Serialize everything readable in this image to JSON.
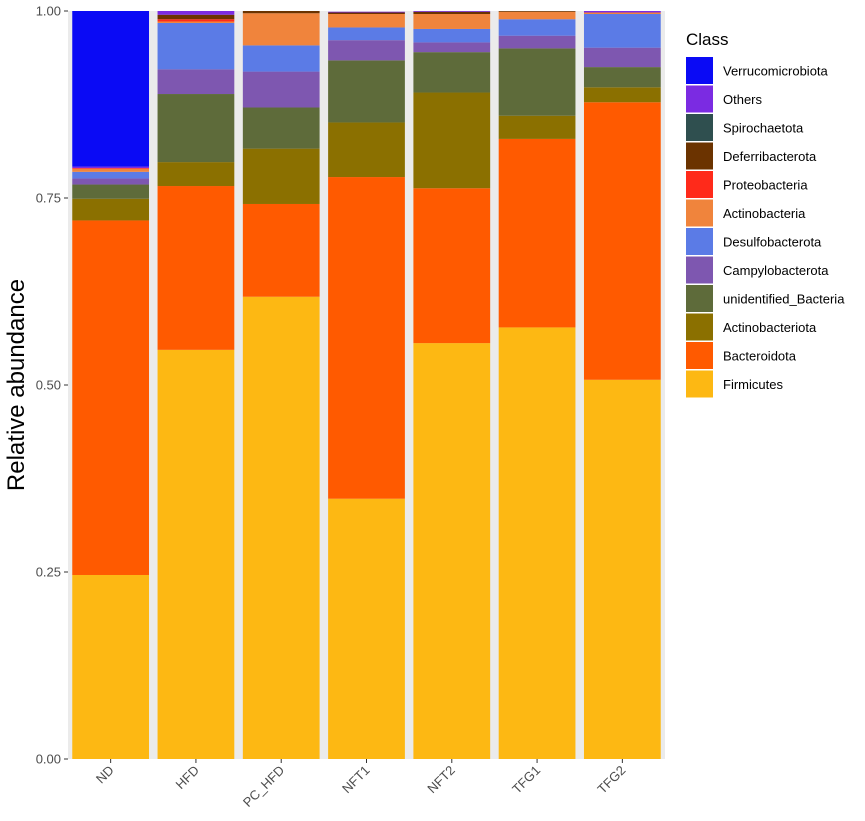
{
  "chart_data": {
    "type": "bar",
    "stacked": true,
    "title": "",
    "xlabel": "",
    "ylabel": "Relative abundance",
    "ylim": [
      0,
      1
    ],
    "y_ticks": [
      "0.00",
      "0.25",
      "0.50",
      "0.75",
      "1.00"
    ],
    "y_tick_values": [
      0,
      0.25,
      0.5,
      0.75,
      1.0
    ],
    "categories": [
      "ND",
      "HFD",
      "PC_HFD",
      "NFT1",
      "NFT2",
      "TFG1",
      "TFG2"
    ],
    "legend_title": "Class",
    "legend_position": "right",
    "panel_background": "#ebebeb",
    "series": [
      {
        "name": "Firmicutes",
        "color": "#FDB813",
        "values": [
          0.246,
          0.547,
          0.618,
          0.348,
          0.556,
          0.577,
          0.507
        ]
      },
      {
        "name": "Bacteroidota",
        "color": "#FF5A00",
        "values": [
          0.474,
          0.219,
          0.124,
          0.43,
          0.207,
          0.252,
          0.371
        ]
      },
      {
        "name": "Actinobacteriota",
        "color": "#8B7000",
        "values": [
          0.029,
          0.032,
          0.074,
          0.073,
          0.128,
          0.031,
          0.02
        ]
      },
      {
        "name": "unidentified_Bacteria",
        "color": "#5E6B3A",
        "values": [
          0.019,
          0.091,
          0.055,
          0.083,
          0.054,
          0.09,
          0.027
        ]
      },
      {
        "name": "Campylobacterota",
        "color": "#7E57B0",
        "values": [
          0.008,
          0.033,
          0.048,
          0.027,
          0.013,
          0.017,
          0.026
        ]
      },
      {
        "name": "Desulfobacterota",
        "color": "#5B7BE6",
        "values": [
          0.009,
          0.062,
          0.035,
          0.017,
          0.018,
          0.022,
          0.045
        ]
      },
      {
        "name": "Actinobacteria",
        "color": "#F0843C",
        "values": [
          0.004,
          0.002,
          0.043,
          0.018,
          0.02,
          0.01,
          0.002
        ]
      },
      {
        "name": "Proteobacteria",
        "color": "#FF2A1A",
        "values": [
          0.001,
          0.003,
          0.0,
          0.0,
          0.0,
          0.0,
          0.0
        ]
      },
      {
        "name": "Deferribacterota",
        "color": "#6B3300",
        "values": [
          0.0,
          0.006,
          0.003,
          0.002,
          0.003,
          0.001,
          0.0
        ]
      },
      {
        "name": "Spirochaetota",
        "color": "#2F4F4F",
        "values": [
          0.0,
          0.0,
          0.0,
          0.0,
          0.0,
          0.0,
          0.0
        ]
      },
      {
        "name": "Others",
        "color": "#7B2BE2",
        "values": [
          0.002,
          0.005,
          0.0,
          0.001,
          0.001,
          0.0,
          0.002
        ]
      },
      {
        "name": "Verrucomicrobiota",
        "color": "#0A0AF5",
        "values": [
          0.208,
          0.0,
          0.0,
          0.0,
          0.0,
          0.0,
          0.0
        ]
      }
    ],
    "legend_order": [
      "Verrucomicrobiota",
      "Others",
      "Spirochaetota",
      "Deferribacterota",
      "Proteobacteria",
      "Actinobacteria",
      "Desulfobacterota",
      "Campylobacterota",
      "unidentified_Bacteria",
      "Actinobacteriota",
      "Bacteroidota",
      "Firmicutes"
    ]
  }
}
